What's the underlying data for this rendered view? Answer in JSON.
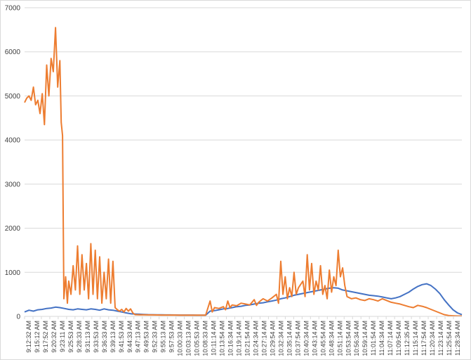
{
  "chart_data": {
    "type": "line",
    "title": "",
    "xlabel": "",
    "ylabel": "",
    "ylim": [
      0,
      7000
    ],
    "yticks": [
      0,
      1000,
      2000,
      3000,
      4000,
      5000,
      6000,
      7000
    ],
    "grid": "horizontal",
    "legend": "none",
    "xticklabels": [
      "9:12:32 AM",
      "9:15:12 AM",
      "9:17:52 AM",
      "9:20:32 AM",
      "9:23:11 AM",
      "9:25:53 AM",
      "9:28:33 AM",
      "9:31:13 AM",
      "9:33:53 AM",
      "9:36:33 AM",
      "9:39:13 AM",
      "9:41:53 AM",
      "9:44:33 AM",
      "9:47:13 AM",
      "9:49:53 AM",
      "9:52:33 AM",
      "9:55:13 AM",
      "9:57:53 AM",
      "10:00:33 AM",
      "10:03:13 AM",
      "10:05:53 AM",
      "10:08:33 AM",
      "10:11:14 AM",
      "10:13:54 AM",
      "10:16:34 AM",
      "10:19:14 AM",
      "10:21:54 AM",
      "10:24:34 AM",
      "10:27:14 AM",
      "10:29:54 AM",
      "10:32:34 AM",
      "10:35:14 AM",
      "10:37:54 AM",
      "10:40:34 AM",
      "10:43:14 AM",
      "10:45:54 AM",
      "10:48:34 AM",
      "10:51:14 AM",
      "10:53:54 AM",
      "10:56:34 AM",
      "10:59:14 AM",
      "11:01:54 AM",
      "11:04:34 AM",
      "11:07:14 AM",
      "11:09:54 AM",
      "11:12:35 AM",
      "11:15:14 AM",
      "11:17:54 AM",
      "11:20:34 AM",
      "11:23:14 AM",
      "11:25:54 AM",
      "11:28:34 AM"
    ],
    "series": [
      {
        "color": "#4472c4",
        "points": [
          [
            0,
            100
          ],
          [
            1,
            140
          ],
          [
            2,
            120
          ],
          [
            3,
            150
          ],
          [
            4,
            160
          ],
          [
            5,
            180
          ],
          [
            6,
            190
          ],
          [
            7,
            210
          ],
          [
            8,
            200
          ],
          [
            9,
            180
          ],
          [
            10,
            160
          ],
          [
            11,
            150
          ],
          [
            12,
            170
          ],
          [
            13,
            160
          ],
          [
            14,
            150
          ],
          [
            15,
            170
          ],
          [
            16,
            160
          ],
          [
            17,
            140
          ],
          [
            18,
            170
          ],
          [
            19,
            150
          ],
          [
            20,
            140
          ],
          [
            21,
            120
          ],
          [
            22,
            100
          ],
          [
            23,
            80
          ],
          [
            24,
            60
          ],
          [
            25,
            55
          ],
          [
            26,
            50
          ],
          [
            27,
            45
          ],
          [
            28,
            40
          ],
          [
            29,
            38
          ],
          [
            30,
            35
          ],
          [
            31,
            35
          ],
          [
            32,
            33
          ],
          [
            33,
            33
          ],
          [
            34,
            32
          ],
          [
            35,
            30
          ],
          [
            36,
            30
          ],
          [
            37,
            30
          ],
          [
            38,
            30
          ],
          [
            39,
            28
          ],
          [
            40,
            28
          ],
          [
            41,
            28
          ],
          [
            42,
            120
          ],
          [
            43,
            130
          ],
          [
            44,
            150
          ],
          [
            45,
            170
          ],
          [
            46,
            180
          ],
          [
            47,
            200
          ],
          [
            48,
            220
          ],
          [
            49,
            230
          ],
          [
            50,
            250
          ],
          [
            51,
            260
          ],
          [
            52,
            280
          ],
          [
            53,
            300
          ],
          [
            54,
            310
          ],
          [
            55,
            330
          ],
          [
            56,
            350
          ],
          [
            57,
            370
          ],
          [
            58,
            400
          ],
          [
            59,
            420
          ],
          [
            60,
            450
          ],
          [
            61,
            480
          ],
          [
            62,
            500
          ],
          [
            63,
            520
          ],
          [
            64,
            540
          ],
          [
            65,
            560
          ],
          [
            66,
            580
          ],
          [
            67,
            600
          ],
          [
            68,
            620
          ],
          [
            69,
            640
          ],
          [
            70,
            650
          ],
          [
            71,
            640
          ],
          [
            72,
            600
          ],
          [
            73,
            580
          ],
          [
            74,
            560
          ],
          [
            75,
            540
          ],
          [
            76,
            520
          ],
          [
            77,
            500
          ],
          [
            78,
            480
          ],
          [
            79,
            470
          ],
          [
            80,
            460
          ],
          [
            81,
            440
          ],
          [
            82,
            420
          ],
          [
            83,
            400
          ],
          [
            84,
            420
          ],
          [
            85,
            450
          ],
          [
            86,
            500
          ],
          [
            87,
            550
          ],
          [
            88,
            620
          ],
          [
            89,
            680
          ],
          [
            90,
            720
          ],
          [
            91,
            740
          ],
          [
            92,
            700
          ],
          [
            93,
            620
          ],
          [
            94,
            520
          ],
          [
            95,
            380
          ],
          [
            96,
            260
          ],
          [
            97,
            150
          ],
          [
            98,
            80
          ],
          [
            99,
            40
          ]
        ]
      },
      {
        "color": "#ed7d31",
        "points": [
          [
            0,
            4850
          ],
          [
            0.5,
            4950
          ],
          [
            1,
            5000
          ],
          [
            1.5,
            4900
          ],
          [
            2,
            5200
          ],
          [
            2.5,
            4800
          ],
          [
            3,
            4900
          ],
          [
            3.5,
            4600
          ],
          [
            4,
            5050
          ],
          [
            4.5,
            4350
          ],
          [
            5,
            5700
          ],
          [
            5.5,
            5000
          ],
          [
            6,
            5850
          ],
          [
            6.5,
            5550
          ],
          [
            7,
            6550
          ],
          [
            7.5,
            5200
          ],
          [
            8,
            5800
          ],
          [
            8.3,
            4400
          ],
          [
            8.6,
            4100
          ],
          [
            8.9,
            400
          ],
          [
            9.3,
            900
          ],
          [
            9.7,
            300
          ],
          [
            10,
            800
          ],
          [
            10.5,
            500
          ],
          [
            11,
            1150
          ],
          [
            11.5,
            600
          ],
          [
            12,
            1600
          ],
          [
            12.5,
            500
          ],
          [
            13,
            1400
          ],
          [
            13.5,
            600
          ],
          [
            14,
            1200
          ],
          [
            14.5,
            400
          ],
          [
            15,
            1650
          ],
          [
            15.5,
            500
          ],
          [
            16,
            1500
          ],
          [
            16.5,
            400
          ],
          [
            17,
            1350
          ],
          [
            17.5,
            300
          ],
          [
            18,
            1000
          ],
          [
            18.5,
            400
          ],
          [
            19,
            1300
          ],
          [
            19.5,
            300
          ],
          [
            20,
            1250
          ],
          [
            20.5,
            200
          ],
          [
            21,
            150
          ],
          [
            21.5,
            120
          ],
          [
            22,
            160
          ],
          [
            22.5,
            100
          ],
          [
            23,
            180
          ],
          [
            23.5,
            120
          ],
          [
            24,
            170
          ],
          [
            24.5,
            80
          ],
          [
            25,
            40
          ],
          [
            26,
            35
          ],
          [
            27,
            35
          ],
          [
            28,
            33
          ],
          [
            29,
            33
          ],
          [
            30,
            32
          ],
          [
            31,
            30
          ],
          [
            32,
            30
          ],
          [
            33,
            30
          ],
          [
            34,
            30
          ],
          [
            35,
            28
          ],
          [
            36,
            28
          ],
          [
            37,
            28
          ],
          [
            38,
            28
          ],
          [
            39,
            28
          ],
          [
            40,
            28
          ],
          [
            41,
            28
          ],
          [
            42,
            350
          ],
          [
            42.5,
            100
          ],
          [
            43,
            200
          ],
          [
            44,
            180
          ],
          [
            45,
            220
          ],
          [
            45.5,
            150
          ],
          [
            46,
            350
          ],
          [
            46.5,
            200
          ],
          [
            47,
            260
          ],
          [
            48,
            240
          ],
          [
            49,
            300
          ],
          [
            50,
            280
          ],
          [
            51,
            260
          ],
          [
            52,
            380
          ],
          [
            52.5,
            250
          ],
          [
            53,
            320
          ],
          [
            54,
            400
          ],
          [
            55,
            350
          ],
          [
            56,
            420
          ],
          [
            57,
            500
          ],
          [
            57.5,
            300
          ],
          [
            58,
            1250
          ],
          [
            58.5,
            500
          ],
          [
            59,
            900
          ],
          [
            59.5,
            400
          ],
          [
            60,
            650
          ],
          [
            60.5,
            450
          ],
          [
            61,
            1000
          ],
          [
            61.5,
            500
          ],
          [
            62,
            650
          ],
          [
            63,
            800
          ],
          [
            63.5,
            450
          ],
          [
            64,
            1400
          ],
          [
            64.5,
            600
          ],
          [
            65,
            1200
          ],
          [
            65.5,
            500
          ],
          [
            66,
            800
          ],
          [
            66.5,
            600
          ],
          [
            67,
            1150
          ],
          [
            67.5,
            500
          ],
          [
            68,
            700
          ],
          [
            68.5,
            400
          ],
          [
            69,
            1050
          ],
          [
            69.5,
            550
          ],
          [
            70,
            900
          ],
          [
            70.5,
            700
          ],
          [
            71,
            1500
          ],
          [
            71.5,
            900
          ],
          [
            72,
            1100
          ],
          [
            72.5,
            700
          ],
          [
            73,
            450
          ],
          [
            74,
            400
          ],
          [
            75,
            420
          ],
          [
            76,
            380
          ],
          [
            77,
            360
          ],
          [
            78,
            400
          ],
          [
            79,
            380
          ],
          [
            80,
            350
          ],
          [
            81,
            400
          ],
          [
            82,
            360
          ],
          [
            83,
            320
          ],
          [
            84,
            300
          ],
          [
            85,
            280
          ],
          [
            86,
            250
          ],
          [
            87,
            220
          ],
          [
            88,
            200
          ],
          [
            89,
            250
          ],
          [
            90,
            230
          ],
          [
            91,
            200
          ],
          [
            92,
            160
          ],
          [
            93,
            120
          ],
          [
            94,
            80
          ],
          [
            95,
            40
          ],
          [
            96,
            20
          ],
          [
            97,
            15
          ],
          [
            98,
            10
          ],
          [
            99,
            10
          ]
        ]
      }
    ]
  }
}
